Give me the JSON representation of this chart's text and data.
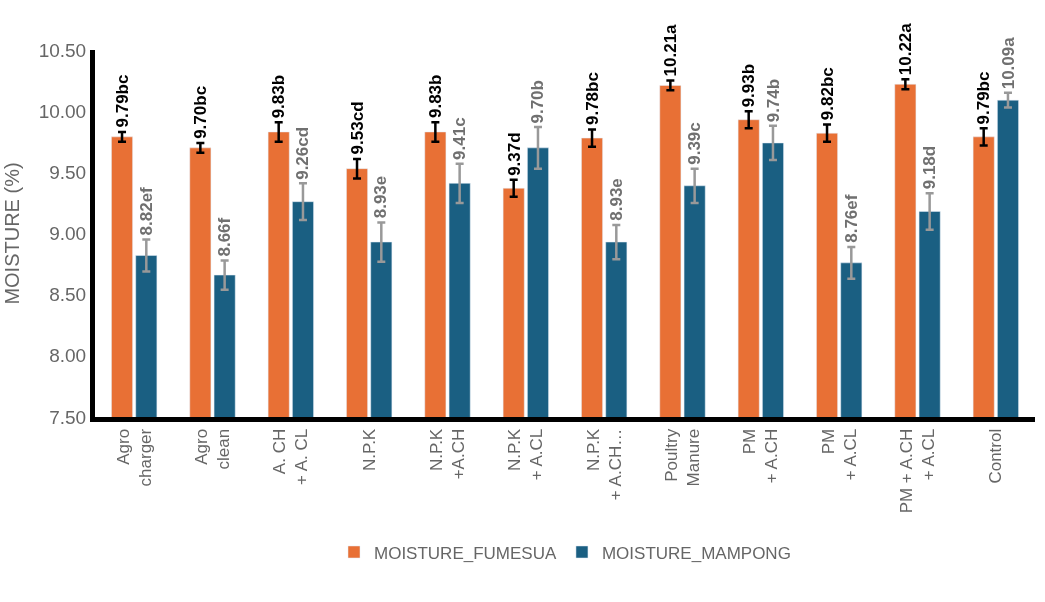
{
  "chart_data": {
    "type": "bar",
    "ylabel": "MOISTURE (%)",
    "categories": [
      "Agro\ncharger",
      "Agro\nclean",
      "A. CH\n+ A. CL",
      "N.P.K",
      "N.P.K\n+A.CH",
      "N.P.K\n+ A.CL",
      "N.P.K\n+ A.CH…",
      "Poultry\nManure",
      "PM\n+ A.CH",
      "PM\n+ A.CL",
      "PM + A.CH\n+ A.CL",
      "Control"
    ],
    "series": [
      {
        "name": "MOISTURE_FUMESUA",
        "color": "#e87035",
        "values": [
          9.79,
          9.7,
          9.83,
          9.53,
          9.83,
          9.37,
          9.78,
          10.21,
          9.93,
          9.82,
          10.22,
          9.79
        ],
        "errors": [
          0.04,
          0.04,
          0.08,
          0.08,
          0.08,
          0.07,
          0.07,
          0.04,
          0.07,
          0.07,
          0.04,
          0.07
        ],
        "value_labels": [
          "9.79bc",
          "9.70bc",
          "9.83b",
          "9.53cd",
          "9.83b",
          "9.37d",
          "9.78bc",
          "10.21a",
          "9.93b",
          "9.82bc",
          "10.22a",
          "9.79bc"
        ]
      },
      {
        "name": "MOISTURE_MAMPONG",
        "color": "#1a5f82",
        "values": [
          8.82,
          8.66,
          9.26,
          8.93,
          9.41,
          9.7,
          8.93,
          9.39,
          9.74,
          8.76,
          9.18,
          10.09
        ],
        "errors": [
          0.13,
          0.12,
          0.15,
          0.16,
          0.16,
          0.17,
          0.14,
          0.14,
          0.14,
          0.13,
          0.15,
          0.06
        ],
        "value_labels": [
          "8.82ef",
          "8.66f",
          "9.26cd",
          "8.93e",
          "9.41c",
          "9.70b",
          "8.93e",
          "9.39c",
          "9.74b",
          "8.76ef",
          "9.18d",
          "10.09a"
        ]
      }
    ],
    "ylim": [
      7.5,
      10.5
    ],
    "yticks": [
      {
        "value": 7.5,
        "label": "7.50"
      },
      {
        "value": 8.0,
        "label": "8.00"
      },
      {
        "value": 8.5,
        "label": "8.50"
      },
      {
        "value": 9.0,
        "label": "9.00"
      },
      {
        "value": 9.5,
        "label": "9.50"
      },
      {
        "value": 10.0,
        "label": "10.00"
      },
      {
        "value": 10.5,
        "label": "10.50"
      }
    ],
    "legend": "bottom"
  }
}
